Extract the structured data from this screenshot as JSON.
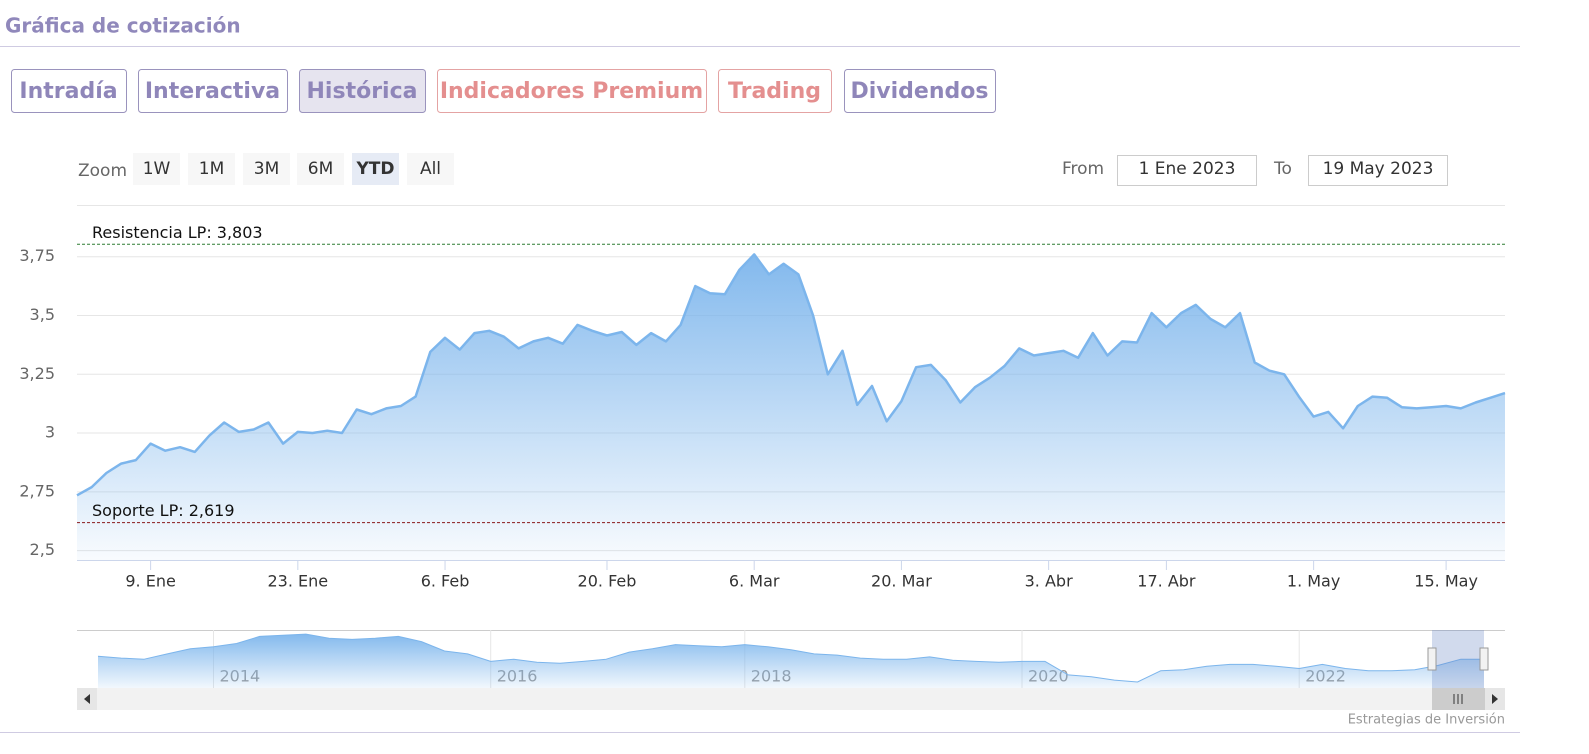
{
  "header": {
    "title": "Gráfica de cotización"
  },
  "tabs": [
    {
      "label": "Intradía"
    },
    {
      "label": "Interactiva"
    },
    {
      "label": "Histórica",
      "active": true
    },
    {
      "label": "Indicadores Premium",
      "premium": true
    },
    {
      "label": "Trading",
      "premium": true
    },
    {
      "label": "Dividendos"
    }
  ],
  "range_selector": {
    "zoom_label": "Zoom",
    "buttons": [
      "1W",
      "1M",
      "3M",
      "6M",
      "YTD",
      "All"
    ],
    "selected": 4,
    "from_label": "From",
    "from": "1 Ene 2023",
    "to_label": "To",
    "to": "19 May 2023"
  },
  "credits": "Estrategias de Inversión",
  "chart_data": [
    {
      "type": "area",
      "categories": [
        null,
        null,
        null,
        null,
        null,
        "9. Ene",
        null,
        null,
        null,
        null,
        null,
        null,
        null,
        null,
        null,
        "23. Ene",
        null,
        null,
        null,
        null,
        null,
        null,
        null,
        null,
        null,
        "6. Feb",
        null,
        null,
        null,
        null,
        null,
        null,
        null,
        null,
        null,
        null,
        "20. Feb",
        null,
        null,
        null,
        null,
        null,
        null,
        null,
        null,
        null,
        "6. Mar",
        null,
        null,
        null,
        null,
        null,
        null,
        null,
        null,
        null,
        "20. Mar",
        null,
        null,
        null,
        null,
        null,
        null,
        null,
        null,
        null,
        "3. Abr",
        null,
        null,
        null,
        null,
        null,
        null,
        null,
        "17. Abr",
        null,
        null,
        null,
        null,
        null,
        null,
        null,
        null,
        null,
        "1. May",
        null,
        null,
        null,
        null,
        null,
        null,
        null,
        null,
        "15. May",
        null,
        null,
        null,
        null
      ],
      "series": [
        {
          "color": "#7cb5ec",
          "values": [
            2.735,
            2.77,
            2.83,
            2.87,
            2.885,
            2.955,
            2.925,
            2.94,
            2.92,
            2.99,
            3.045,
            3.005,
            3.015,
            3.045,
            2.955,
            3.005,
            3.0,
            3.01,
            3.0,
            3.1,
            3.08,
            3.105,
            3.115,
            3.155,
            3.345,
            3.405,
            3.355,
            3.425,
            3.435,
            3.41,
            3.36,
            3.39,
            3.405,
            3.38,
            3.46,
            3.435,
            3.415,
            3.43,
            3.375,
            3.425,
            3.39,
            3.46,
            3.625,
            3.595,
            3.59,
            3.695,
            3.76,
            3.675,
            3.72,
            3.675,
            3.5,
            3.25,
            3.35,
            3.12,
            3.2,
            3.05,
            3.135,
            3.28,
            3.29,
            3.225,
            3.13,
            3.195,
            3.235,
            3.285,
            3.36,
            3.33,
            3.34,
            3.35,
            3.32,
            3.425,
            3.33,
            3.39,
            3.385,
            3.51,
            3.45,
            3.51,
            3.545,
            3.485,
            3.45,
            3.51,
            3.3,
            3.265,
            3.25,
            3.155,
            3.07,
            3.09,
            3.02,
            3.115,
            3.155,
            3.15,
            3.11,
            3.105,
            3.11,
            3.115,
            3.105,
            3.13,
            3.15,
            3.17
          ]
        }
      ],
      "ylim": [
        2.46,
        3.97
      ],
      "yticks": [
        {
          "value": 2.5,
          "label": "2,5"
        },
        {
          "value": 2.75,
          "label": "2,75"
        },
        3,
        {
          "value": 3.25,
          "label": "3,25"
        },
        {
          "value": 3.5,
          "label": "3,5"
        },
        {
          "value": 3.75,
          "label": "3,75"
        }
      ],
      "grid": true,
      "plot_lines": [
        {
          "label": "Resistencia LP: 3,803",
          "value": 3.803,
          "color": "#2e7d32"
        },
        {
          "label": "Soporte LP: 2,619",
          "value": 2.619,
          "color": "#8b1a1a"
        }
      ]
    },
    {
      "type": "area",
      "categories": [
        null,
        null,
        null,
        null,
        null,
        "2014",
        null,
        null,
        null,
        null,
        null,
        null,
        null,
        null,
        null,
        null,
        null,
        "2016",
        null,
        null,
        null,
        null,
        null,
        null,
        null,
        null,
        null,
        null,
        "2018",
        null,
        null,
        null,
        null,
        null,
        null,
        null,
        null,
        null,
        null,
        null,
        "2020",
        null,
        null,
        null,
        null,
        null,
        null,
        null,
        null,
        null,
        null,
        null,
        "2022",
        null,
        null,
        null,
        null,
        null,
        null,
        null,
        null
      ],
      "series": [
        {
          "color": "#7cb5ec",
          "values": [
            3.25,
            3.2,
            3.17,
            3.31,
            3.45,
            3.5,
            3.59,
            3.78,
            3.81,
            3.84,
            3.73,
            3.7,
            3.73,
            3.78,
            3.64,
            3.39,
            3.31,
            3.11,
            3.17,
            3.09,
            3.06,
            3.11,
            3.17,
            3.36,
            3.45,
            3.56,
            3.53,
            3.5,
            3.56,
            3.5,
            3.42,
            3.31,
            3.28,
            3.2,
            3.17,
            3.17,
            3.23,
            3.14,
            3.11,
            3.09,
            3.11,
            3.11,
            2.75,
            2.7,
            2.61,
            2.56,
            2.86,
            2.89,
            2.98,
            3.03,
            3.03,
            2.98,
            2.92,
            3.03,
            2.92,
            2.86,
            2.86,
            2.89,
            3.0,
            3.17,
            3.17
          ]
        }
      ],
      "ylim": [
        2.4,
        3.95
      ]
    }
  ]
}
